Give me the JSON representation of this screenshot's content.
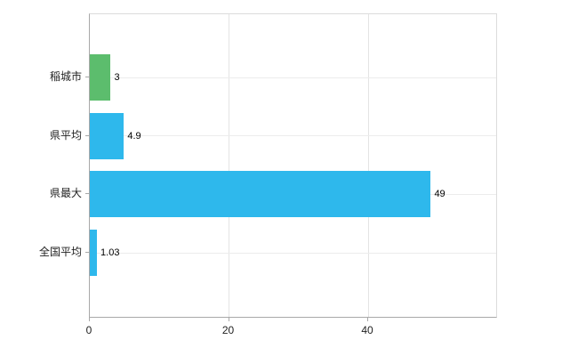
{
  "chart_data": {
    "type": "bar",
    "orientation": "horizontal",
    "title": "",
    "xlabel": "",
    "ylabel": "",
    "categories": [
      "稲城市",
      "県平均",
      "県最大",
      "全国平均"
    ],
    "values": [
      3,
      4.9,
      49,
      1.03
    ],
    "value_labels": [
      "3",
      "4.9",
      "49",
      "1.03"
    ],
    "bar_colors": [
      "#5cbd6d",
      "#2eb8ec",
      "#2eb8ec",
      "#2eb8ec"
    ],
    "xtick_labels": [
      "0",
      "20",
      "40"
    ],
    "xtick_values": [
      0,
      20,
      40
    ],
    "xlim": [
      0,
      58.4
    ],
    "grid": "vertical",
    "legend": "none",
    "background": "#ffffff"
  }
}
